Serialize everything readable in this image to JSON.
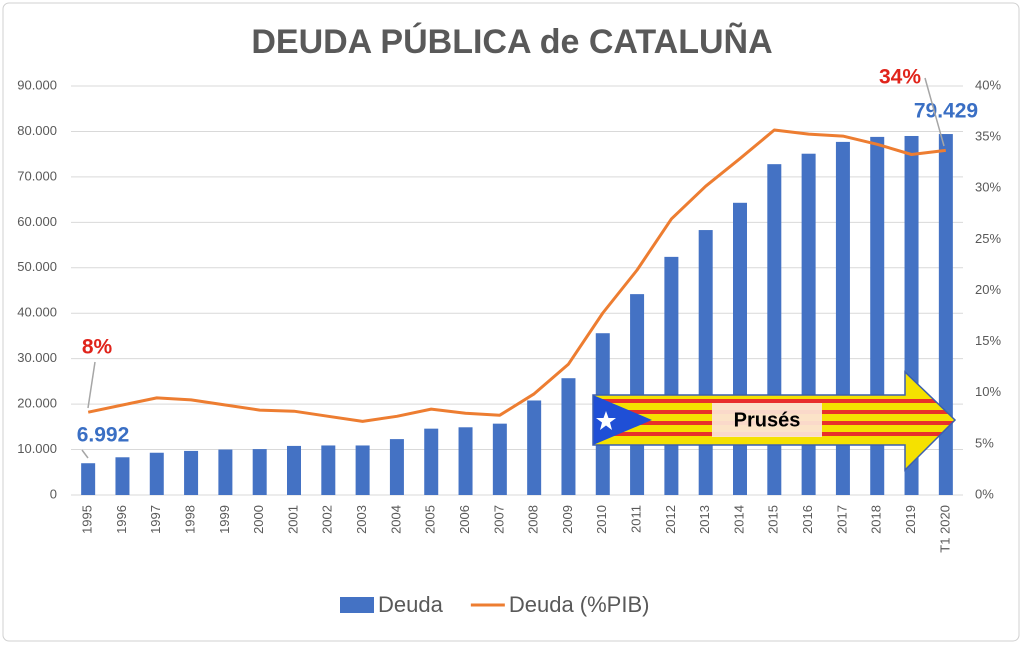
{
  "chart_data": {
    "type": "bar-line",
    "title": "DEUDA PÚBLICA de CATALUÑA",
    "categories": [
      "1995",
      "1996",
      "1997",
      "1998",
      "1999",
      "2000",
      "2001",
      "2002",
      "2003",
      "2004",
      "2005",
      "2006",
      "2007",
      "2008",
      "2009",
      "2010",
      "2011",
      "2012",
      "2013",
      "2014",
      "2015",
      "2016",
      "2017",
      "2018",
      "2019",
      "T1 2020"
    ],
    "series": [
      {
        "name": "Deuda",
        "type": "bar",
        "color": "#4472c4",
        "values": [
          6992,
          8300,
          9300,
          9700,
          10000,
          10100,
          10800,
          10900,
          10900,
          12300,
          14600,
          14900,
          15700,
          20800,
          25700,
          35600,
          44200,
          52400,
          58300,
          64300,
          72800,
          75100,
          77700,
          78800,
          79000,
          79429
        ],
        "value_labels": [
          "6.992",
          null,
          null,
          null,
          null,
          null,
          null,
          null,
          null,
          null,
          null,
          null,
          null,
          null,
          null,
          null,
          null,
          null,
          null,
          null,
          null,
          null,
          null,
          null,
          null,
          "79.429"
        ]
      },
      {
        "name": "Deuda (%PIB)",
        "type": "line",
        "axis": "y2",
        "color": "#ed7d31",
        "values": [
          8.1,
          8.8,
          9.5,
          9.3,
          8.8,
          8.3,
          8.2,
          7.7,
          7.2,
          7.7,
          8.4,
          8.0,
          7.8,
          9.9,
          12.8,
          17.8,
          22.0,
          27.0,
          30.2,
          32.9,
          35.7,
          35.3,
          35.1,
          34.3,
          33.3,
          33.7
        ],
        "value_labels": [
          "8%",
          null,
          null,
          null,
          null,
          null,
          null,
          null,
          null,
          null,
          null,
          null,
          null,
          null,
          null,
          null,
          null,
          null,
          null,
          null,
          null,
          null,
          null,
          null,
          null,
          "34%"
        ]
      }
    ],
    "ylim": [
      0,
      90000
    ],
    "yticks": [
      0,
      {
        "value": 10000,
        "label": "10.000"
      },
      {
        "value": 20000,
        "label": "20.000"
      },
      {
        "value": 30000,
        "label": "30.000"
      },
      {
        "value": 40000,
        "label": "40.000"
      },
      {
        "value": 50000,
        "label": "50.000"
      },
      {
        "value": 60000,
        "label": "60.000"
      },
      {
        "value": 70000,
        "label": "70.000"
      },
      {
        "value": 80000,
        "label": "80.000"
      },
      {
        "value": 90000,
        "label": "90.000"
      }
    ],
    "y2lim": [
      0,
      40
    ],
    "y2ticks": [
      {
        "value": 0,
        "label": "0%"
      },
      {
        "value": 5,
        "label": "5%"
      },
      {
        "value": 10,
        "label": "10%"
      },
      {
        "value": 15,
        "label": "15%"
      },
      {
        "value": 20,
        "label": "20%"
      },
      {
        "value": 25,
        "label": "25%"
      },
      {
        "value": 30,
        "label": "30%"
      },
      {
        "value": 35,
        "label": "35%"
      },
      {
        "value": 40,
        "label": "40%"
      }
    ],
    "grid": true,
    "annotation": "Prusés"
  }
}
